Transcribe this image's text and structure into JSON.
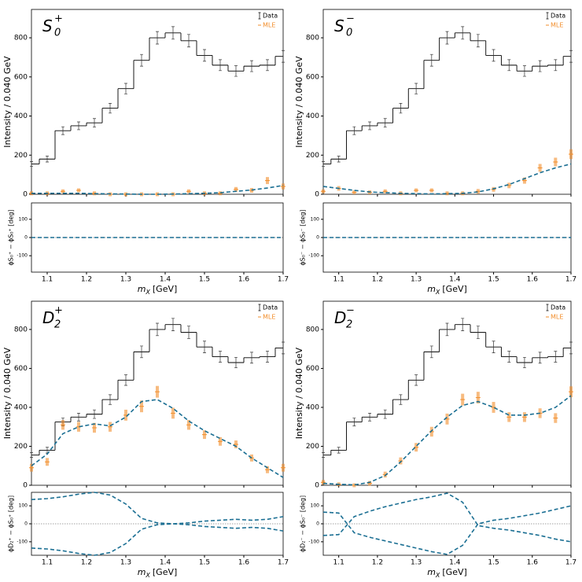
{
  "chart_data": [
    {
      "type": "fit",
      "title": "S",
      "title_sub": "0",
      "title_sup": "+",
      "ylabel": "Intensity / 0.040 GeV",
      "xlabel": "m",
      "xlabel_sub": "X",
      "xlabel_unit": "[GeV]",
      "x": [
        1.06,
        1.1,
        1.14,
        1.18,
        1.22,
        1.26,
        1.3,
        1.34,
        1.38,
        1.42,
        1.46,
        1.5,
        1.54,
        1.58,
        1.62,
        1.66,
        1.7
      ],
      "xlim": [
        1.06,
        1.7
      ],
      "xticks": [
        1.1,
        1.2,
        1.3,
        1.4,
        1.5,
        1.6,
        1.7
      ],
      "ylim": [
        0,
        945
      ],
      "yticks": [
        0,
        200,
        400,
        600,
        800
      ],
      "series": [
        {
          "name": "Data",
          "color": "#000000",
          "values": [
            155,
            180,
            325,
            350,
            365,
            440,
            540,
            685,
            800,
            825,
            785,
            710,
            660,
            630,
            655,
            660,
            705
          ],
          "errors": [
            12,
            15,
            20,
            20,
            22,
            25,
            27,
            30,
            32,
            32,
            32,
            30,
            28,
            27,
            28,
            28,
            30
          ]
        },
        {
          "name": "MLE",
          "color": "#f28e2b",
          "values": [
            5,
            5,
            15,
            20,
            5,
            0,
            0,
            0,
            0,
            0,
            15,
            5,
            5,
            25,
            20,
            70,
            40
          ],
          "errors": [
            10,
            10,
            10,
            10,
            10,
            10,
            10,
            10,
            10,
            10,
            10,
            10,
            10,
            12,
            12,
            18,
            15
          ]
        },
        {
          "color": "#1b6f93",
          "values": [
            5,
            5,
            5,
            5,
            3,
            2,
            1,
            0,
            0,
            1,
            3,
            5,
            8,
            15,
            22,
            32,
            45
          ]
        }
      ],
      "phase": {
        "ylabel": "ϕS₀⁺ − ϕS₀⁺ [deg]",
        "ylim": [
          -190,
          190
        ],
        "yticks": [
          -100,
          0,
          100
        ],
        "series": [
          {
            "color": "#1b6f93",
            "values": [
              0,
              0,
              0,
              0,
              0,
              0,
              0,
              0,
              0,
              0,
              0,
              0,
              0,
              0,
              0,
              0,
              0
            ]
          }
        ]
      }
    },
    {
      "type": "fit",
      "title": "S",
      "title_sub": "0",
      "title_sup": "−",
      "ylabel": "Intensity / 0.040 GeV",
      "xlabel": "m",
      "xlabel_sub": "X",
      "xlabel_unit": "[GeV]",
      "x": [
        1.06,
        1.1,
        1.14,
        1.18,
        1.22,
        1.26,
        1.3,
        1.34,
        1.38,
        1.42,
        1.46,
        1.5,
        1.54,
        1.58,
        1.62,
        1.66,
        1.7
      ],
      "xlim": [
        1.06,
        1.7
      ],
      "xticks": [
        1.1,
        1.2,
        1.3,
        1.4,
        1.5,
        1.6,
        1.7
      ],
      "ylim": [
        0,
        945
      ],
      "yticks": [
        0,
        200,
        400,
        600,
        800
      ],
      "series": [
        {
          "name": "Data",
          "color": "#000000",
          "values": [
            155,
            180,
            325,
            350,
            365,
            440,
            540,
            685,
            800,
            825,
            785,
            710,
            660,
            630,
            655,
            660,
            705
          ],
          "errors": [
            12,
            15,
            20,
            20,
            22,
            25,
            27,
            30,
            32,
            32,
            32,
            30,
            28,
            27,
            28,
            28,
            30
          ]
        },
        {
          "name": "MLE",
          "color": "#f28e2b",
          "values": [
            15,
            30,
            10,
            10,
            15,
            5,
            20,
            20,
            5,
            5,
            15,
            25,
            45,
            70,
            135,
            165,
            205
          ],
          "errors": [
            10,
            12,
            10,
            10,
            10,
            10,
            10,
            10,
            10,
            10,
            12,
            12,
            14,
            16,
            20,
            22,
            25
          ]
        },
        {
          "color": "#1b6f93",
          "values": [
            40,
            30,
            20,
            12,
            8,
            5,
            3,
            2,
            3,
            5,
            12,
            28,
            50,
            80,
            110,
            135,
            155
          ]
        }
      ],
      "phase": {
        "ylabel": "ϕS₀⁻ − ϕS₀⁻ [deg]",
        "ylim": [
          -190,
          190
        ],
        "yticks": [
          -100,
          0,
          100
        ],
        "series": [
          {
            "color": "#1b6f93",
            "values": [
              0,
              0,
              0,
              0,
              0,
              0,
              0,
              0,
              0,
              0,
              0,
              0,
              0,
              0,
              0,
              0,
              0
            ]
          }
        ]
      }
    },
    {
      "type": "fit",
      "title": "D",
      "title_sub": "2",
      "title_sup": "+",
      "ylabel": "Intensity / 0.040 GeV",
      "xlabel": "m",
      "xlabel_sub": "X",
      "xlabel_unit": "[GeV]",
      "x": [
        1.06,
        1.1,
        1.14,
        1.18,
        1.22,
        1.26,
        1.3,
        1.34,
        1.38,
        1.42,
        1.46,
        1.5,
        1.54,
        1.58,
        1.62,
        1.66,
        1.7
      ],
      "xlim": [
        1.06,
        1.7
      ],
      "xticks": [
        1.1,
        1.2,
        1.3,
        1.4,
        1.5,
        1.6,
        1.7
      ],
      "ylim": [
        0,
        945
      ],
      "yticks": [
        0,
        200,
        400,
        600,
        800
      ],
      "series": [
        {
          "name": "Data",
          "color": "#000000",
          "values": [
            155,
            180,
            325,
            350,
            365,
            440,
            540,
            685,
            800,
            825,
            785,
            710,
            660,
            630,
            655,
            660,
            705
          ],
          "errors": [
            12,
            15,
            20,
            20,
            22,
            25,
            27,
            30,
            32,
            32,
            32,
            30,
            28,
            27,
            28,
            28,
            30
          ]
        },
        {
          "name": "MLE",
          "color": "#f28e2b",
          "values": [
            90,
            120,
            310,
            300,
            295,
            300,
            360,
            405,
            480,
            370,
            310,
            260,
            225,
            210,
            140,
            80,
            90
          ],
          "errors": [
            20,
            20,
            25,
            25,
            25,
            25,
            28,
            30,
            30,
            28,
            25,
            22,
            22,
            20,
            18,
            18,
            20
          ]
        },
        {
          "color": "#1b6f93",
          "values": [
            100,
            160,
            265,
            300,
            315,
            305,
            350,
            430,
            440,
            395,
            330,
            280,
            240,
            200,
            140,
            90,
            40
          ]
        }
      ],
      "phase": {
        "ylabel": "ϕD₂⁺ − ϕS₀⁺ [deg]",
        "ylim": [
          -175,
          175
        ],
        "yticks": [
          -100,
          0,
          100
        ],
        "series": [
          {
            "color": "#1b6f93",
            "values": [
              135,
              140,
              150,
              165,
              175,
              160,
              110,
              30,
              5,
              0,
              5,
              15,
              20,
              25,
              20,
              25,
              40
            ]
          },
          {
            "color": "#1b6f93",
            "values": [
              -135,
              -140,
              -150,
              -165,
              -175,
              -160,
              -110,
              -30,
              -5,
              0,
              -5,
              -15,
              -20,
              -25,
              -20,
              -25,
              -40
            ]
          }
        ]
      }
    },
    {
      "type": "fit",
      "title": "D",
      "title_sub": "2",
      "title_sup": "−",
      "ylabel": "Intensity / 0.040 GeV",
      "xlabel": "m",
      "xlabel_sub": "X",
      "xlabel_unit": "[GeV]",
      "x": [
        1.06,
        1.1,
        1.14,
        1.18,
        1.22,
        1.26,
        1.3,
        1.34,
        1.38,
        1.42,
        1.46,
        1.5,
        1.54,
        1.58,
        1.62,
        1.66,
        1.7
      ],
      "xlim": [
        1.06,
        1.7
      ],
      "xticks": [
        1.1,
        1.2,
        1.3,
        1.4,
        1.5,
        1.6,
        1.7
      ],
      "ylim": [
        0,
        945
      ],
      "yticks": [
        0,
        200,
        400,
        600,
        800
      ],
      "series": [
        {
          "name": "Data",
          "color": "#000000",
          "values": [
            155,
            180,
            325,
            350,
            365,
            440,
            540,
            685,
            800,
            825,
            785,
            710,
            660,
            630,
            655,
            660,
            705
          ],
          "errors": [
            12,
            15,
            20,
            20,
            22,
            25,
            27,
            30,
            32,
            32,
            32,
            30,
            28,
            27,
            28,
            28,
            30
          ]
        },
        {
          "name": "MLE",
          "color": "#f28e2b",
          "values": [
            15,
            5,
            0,
            10,
            55,
            125,
            195,
            275,
            340,
            440,
            450,
            400,
            350,
            350,
            370,
            345,
            480
          ],
          "errors": [
            12,
            10,
            10,
            12,
            15,
            18,
            22,
            25,
            28,
            30,
            30,
            28,
            25,
            25,
            25,
            25,
            28
          ]
        },
        {
          "color": "#1b6f93",
          "values": [
            10,
            5,
            2,
            15,
            50,
            120,
            200,
            280,
            350,
            410,
            430,
            400,
            360,
            360,
            370,
            400,
            460
          ]
        }
      ],
      "phase": {
        "ylabel": "ϕD₂⁻ − ϕS₀⁻ [deg]",
        "ylim": [
          -175,
          175
        ],
        "yticks": [
          -100,
          0,
          100
        ],
        "series": [
          {
            "color": "#1b6f93",
            "values": [
              65,
              60,
              -50,
              -75,
              -95,
              -115,
              -135,
              -155,
              -170,
              -120,
              0,
              20,
              30,
              45,
              60,
              80,
              100
            ]
          },
          {
            "color": "#1b6f93",
            "values": [
              -65,
              -60,
              40,
              70,
              95,
              115,
              135,
              150,
              170,
              120,
              -10,
              -25,
              -35,
              -50,
              -65,
              -85,
              -100
            ]
          }
        ]
      }
    }
  ]
}
